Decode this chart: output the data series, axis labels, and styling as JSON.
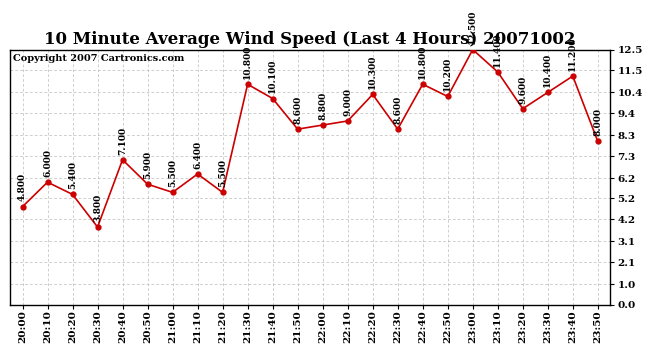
{
  "title": "10 Minute Average Wind Speed (Last 4 Hours) 20071002",
  "copyright": "Copyright 2007 Cartronics.com",
  "x_labels": [
    "20:00",
    "20:10",
    "20:20",
    "20:30",
    "20:40",
    "20:50",
    "21:00",
    "21:10",
    "21:20",
    "21:30",
    "21:40",
    "21:50",
    "22:00",
    "22:10",
    "22:20",
    "22:30",
    "22:40",
    "22:50",
    "23:00",
    "23:10",
    "23:20",
    "23:30",
    "23:40",
    "23:50"
  ],
  "y_values": [
    4.8,
    6.0,
    5.4,
    3.8,
    7.1,
    5.9,
    5.5,
    6.4,
    5.5,
    10.8,
    10.1,
    8.6,
    8.8,
    9.0,
    10.3,
    8.6,
    10.8,
    10.2,
    12.5,
    11.4,
    9.6,
    10.4,
    11.2,
    8.0
  ],
  "y_tick_positions": [
    0.0,
    1.0,
    2.1,
    3.1,
    4.2,
    5.2,
    6.2,
    7.3,
    8.3,
    9.4,
    10.4,
    11.5,
    12.5
  ],
  "y_tick_labels": [
    "0.0",
    "1.0",
    "2.1",
    "3.1",
    "4.2",
    "5.2",
    "6.2",
    "7.3",
    "8.3",
    "9.4",
    "10.4",
    "11.5",
    "12.5"
  ],
  "line_color": "#cc0000",
  "marker_color": "#cc0000",
  "bg_color": "#ffffff",
  "grid_color": "#bbbbbb",
  "annotation_color": "#000000",
  "ylim": [
    0.0,
    12.5
  ],
  "title_fontsize": 12,
  "tick_fontsize": 7.5,
  "annotation_fontsize": 6.5,
  "copyright_fontsize": 7
}
